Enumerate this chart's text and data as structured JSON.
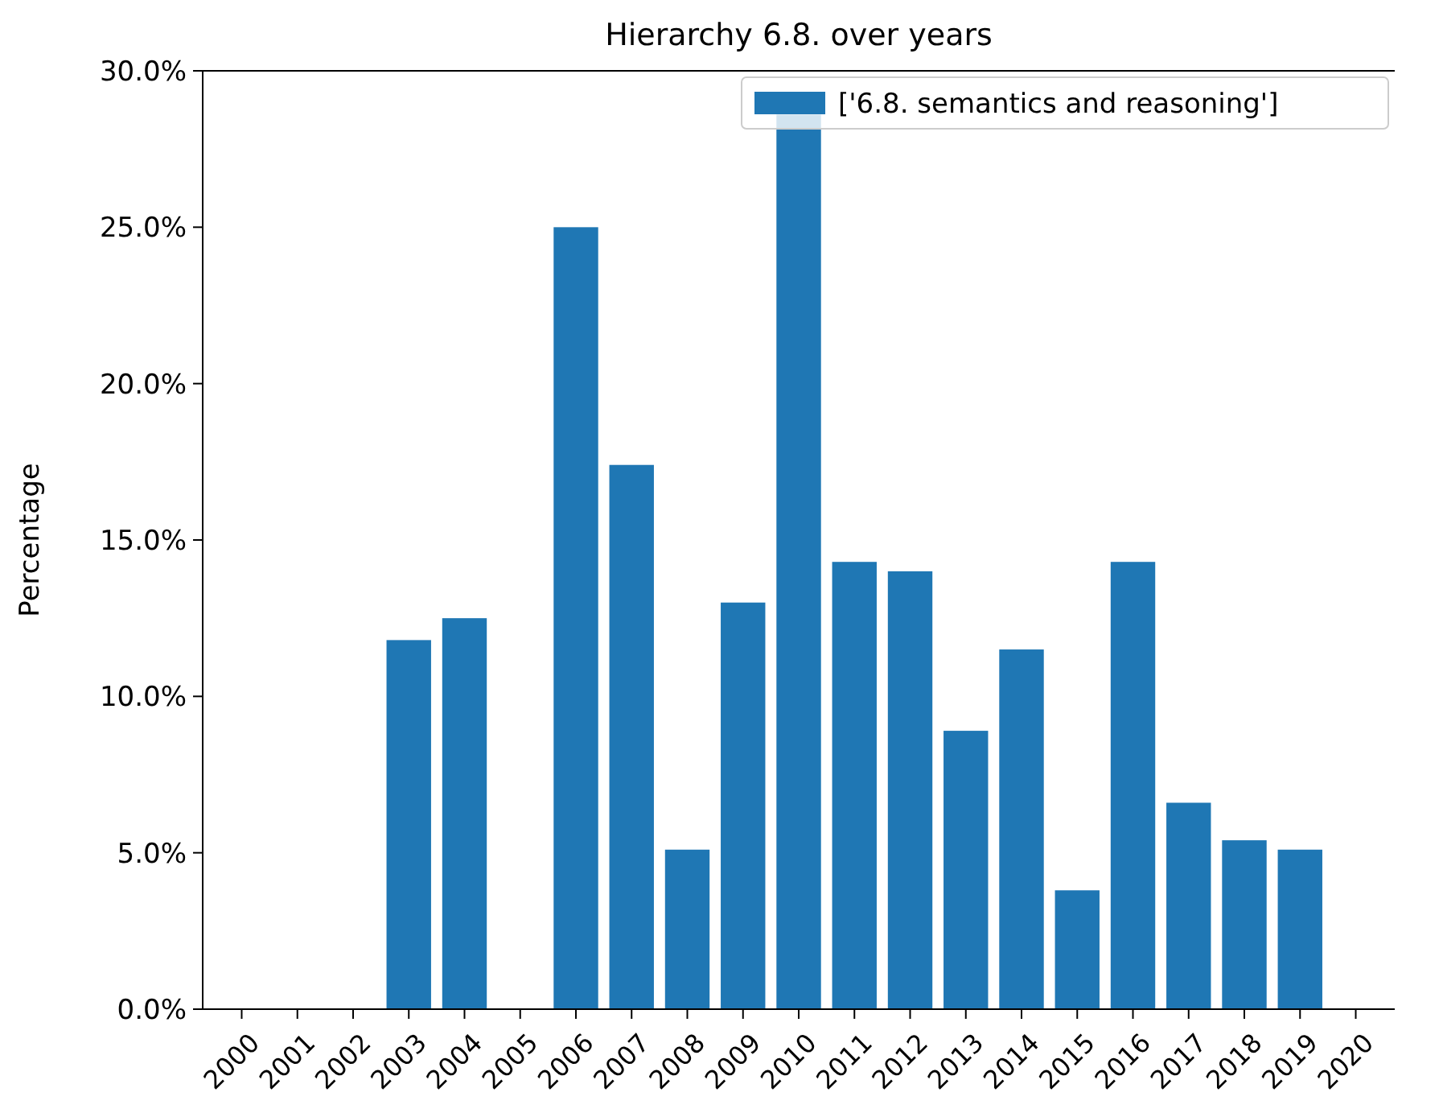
{
  "chart_data": {
    "type": "bar",
    "title": "Hierarchy 6.8. over years",
    "ylabel": "Percentage",
    "categories": [
      "2000",
      "2001",
      "2002",
      "2003",
      "2004",
      "2005",
      "2006",
      "2007",
      "2008",
      "2009",
      "2010",
      "2011",
      "2012",
      "2013",
      "2014",
      "2015",
      "2016",
      "2017",
      "2018",
      "2019",
      "2020"
    ],
    "series": [
      {
        "name": "['6.8. semantics and reasoning']",
        "color": "#1f77b4",
        "values": [
          0,
          0,
          0,
          11.8,
          12.5,
          0,
          25.0,
          17.4,
          5.1,
          13.0,
          28.6,
          14.3,
          14.0,
          8.9,
          11.5,
          3.8,
          14.3,
          6.6,
          5.4,
          5.1,
          0
        ]
      }
    ],
    "ylim": [
      0,
      30
    ],
    "yticks": [
      {
        "value": 0,
        "label": "0.0%"
      },
      {
        "value": 5,
        "label": "5.0%"
      },
      {
        "value": 10,
        "label": "10.0%"
      },
      {
        "value": 15,
        "label": "15.0%"
      },
      {
        "value": 20,
        "label": "20.0%"
      },
      {
        "value": 25,
        "label": "25.0%"
      },
      {
        "value": 30,
        "label": "30.0%"
      }
    ],
    "legend": "top right"
  }
}
